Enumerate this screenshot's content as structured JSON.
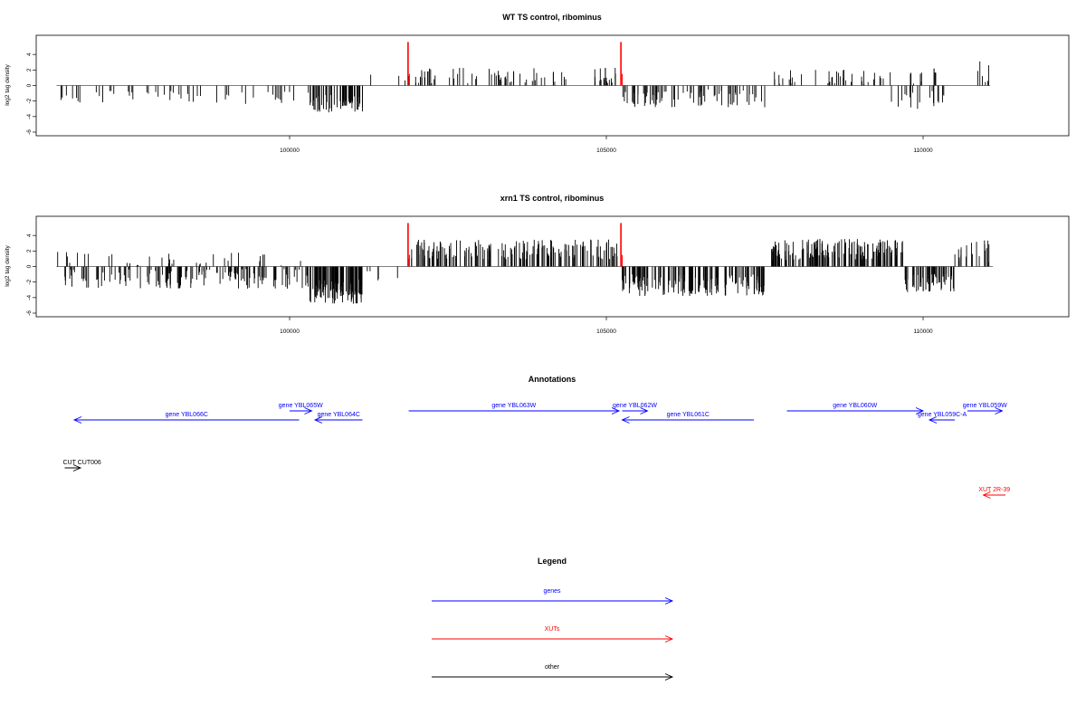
{
  "colors": {
    "bars": "#000000",
    "highlight": "#ff0000",
    "baseline": "#555555",
    "gene": "#0000ff",
    "xut": "#ff0000",
    "other": "#000000"
  },
  "chart_data": [
    {
      "type": "bar",
      "title": "WT TS control, ribominus",
      "ylabel": "log2 tag density",
      "xlim": [
        96000,
        112300
      ],
      "ylim": [
        -6,
        6
      ],
      "x_ticks": [
        100000,
        105000,
        110000
      ],
      "y_ticks": [
        -6,
        -4,
        -2,
        0,
        2,
        4
      ],
      "grid": false,
      "highlight_x": [
        101870,
        105230
      ],
      "regions": [
        {
          "x_start": 96320,
          "x_end": 98900,
          "sign": -1,
          "count": 34,
          "mean": 1.4,
          "amp": 0.8
        },
        {
          "x_start": 98900,
          "x_end": 100300,
          "sign": -1,
          "count": 17,
          "mean": 1.6,
          "amp": 0.8
        },
        {
          "x_start": 100320,
          "x_end": 101150,
          "sign": -1,
          "count": 60,
          "mean": 2.3,
          "amp": 1.2
        },
        {
          "x_start": 101150,
          "x_end": 101850,
          "sign": 1,
          "count": 3,
          "mean": 1.0,
          "amp": 0.5
        },
        {
          "x_start": 101880,
          "x_end": 105200,
          "sign": 1,
          "count": 80,
          "mean": 1.3,
          "amp": 1.0
        },
        {
          "x_start": 105250,
          "x_end": 107500,
          "sign": -1,
          "count": 75,
          "mean": 1.6,
          "amp": 1.2
        },
        {
          "x_start": 107650,
          "x_end": 109500,
          "sign": 1,
          "count": 40,
          "mean": 1.1,
          "amp": 1.0
        },
        {
          "x_start": 109500,
          "x_end": 110400,
          "sign": -1,
          "count": 20,
          "mean": 1.8,
          "amp": 1.2
        },
        {
          "x_start": 109750,
          "x_end": 110200,
          "sign": 1,
          "count": 10,
          "mean": 1.2,
          "amp": 1.0
        },
        {
          "x_start": 110700,
          "x_end": 111060,
          "sign": 1,
          "count": 6,
          "mean": 1.8,
          "amp": 1.4
        }
      ]
    },
    {
      "type": "bar",
      "title": "xrn1 TS control, ribominus",
      "ylabel": "log2 tag density",
      "xlim": [
        96000,
        112300
      ],
      "ylim": [
        -6,
        6
      ],
      "x_ticks": [
        100000,
        105000,
        110000
      ],
      "y_ticks": [
        -6,
        -4,
        -2,
        0,
        2,
        4
      ],
      "grid": false,
      "highlight_x": [
        101870,
        105230
      ],
      "regions": [
        {
          "x_start": 96320,
          "x_end": 100300,
          "sign": -1,
          "count": 150,
          "mean": 1.6,
          "amp": 1.3
        },
        {
          "x_start": 96320,
          "x_end": 100300,
          "sign": 1,
          "count": 35,
          "mean": 0.9,
          "amp": 1.0
        },
        {
          "x_start": 100320,
          "x_end": 101150,
          "sign": -1,
          "count": 120,
          "mean": 3.2,
          "amp": 1.6
        },
        {
          "x_start": 101150,
          "x_end": 101850,
          "sign": -1,
          "count": 5,
          "mean": 1.2,
          "amp": 0.6
        },
        {
          "x_start": 101880,
          "x_end": 105200,
          "sign": 1,
          "count": 180,
          "mean": 2.2,
          "amp": 1.3
        },
        {
          "x_start": 105250,
          "x_end": 107500,
          "sign": -1,
          "count": 170,
          "mean": 2.4,
          "amp": 1.4
        },
        {
          "x_start": 107600,
          "x_end": 109700,
          "sign": 1,
          "count": 170,
          "mean": 2.2,
          "amp": 1.4
        },
        {
          "x_start": 109700,
          "x_end": 110500,
          "sign": -1,
          "count": 60,
          "mean": 2.0,
          "amp": 1.3
        },
        {
          "x_start": 110500,
          "x_end": 111100,
          "sign": 1,
          "count": 20,
          "mean": 2.0,
          "amp": 1.5
        }
      ]
    }
  ],
  "annotations": {
    "title": "Annotations",
    "features": [
      {
        "label": "gene YBL066C",
        "start": 96600,
        "end": 100150,
        "strand": "-",
        "type": "gene",
        "row": 1
      },
      {
        "label": "gene YBL065W",
        "start": 100000,
        "end": 100350,
        "strand": "+",
        "type": "gene",
        "row": 0
      },
      {
        "label": "gene YBL064C",
        "start": 100400,
        "end": 101150,
        "strand": "-",
        "type": "gene",
        "row": 1
      },
      {
        "label": "gene YBL063W",
        "start": 101880,
        "end": 105200,
        "strand": "+",
        "type": "gene",
        "row": 0
      },
      {
        "label": "gene YBL062W",
        "start": 105250,
        "end": 105650,
        "strand": "+",
        "type": "gene",
        "row": 0
      },
      {
        "label": "gene YBL061C",
        "start": 105250,
        "end": 107330,
        "strand": "-",
        "type": "gene",
        "row": 1
      },
      {
        "label": "gene YBL060W",
        "start": 107850,
        "end": 110000,
        "strand": "+",
        "type": "gene",
        "row": 0
      },
      {
        "label": "gene YBL059C-A",
        "start": 110100,
        "end": 110500,
        "strand": "-",
        "type": "gene",
        "row": 1
      },
      {
        "label": "gene YBL059W",
        "start": 110700,
        "end": 111250,
        "strand": "+",
        "type": "gene",
        "row": 0
      },
      {
        "label": "CUT CUT006",
        "start": 96450,
        "end": 96700,
        "strand": "+",
        "type": "other",
        "row": 2
      },
      {
        "label": "XUT 2R-39",
        "start": 110950,
        "end": 111300,
        "strand": "-",
        "type": "xut",
        "row": 3
      }
    ]
  },
  "legend": {
    "title": "Legend",
    "items": [
      {
        "label": "genes",
        "type": "gene"
      },
      {
        "label": "XUTs",
        "type": "xut"
      },
      {
        "label": "other",
        "type": "other"
      }
    ]
  }
}
